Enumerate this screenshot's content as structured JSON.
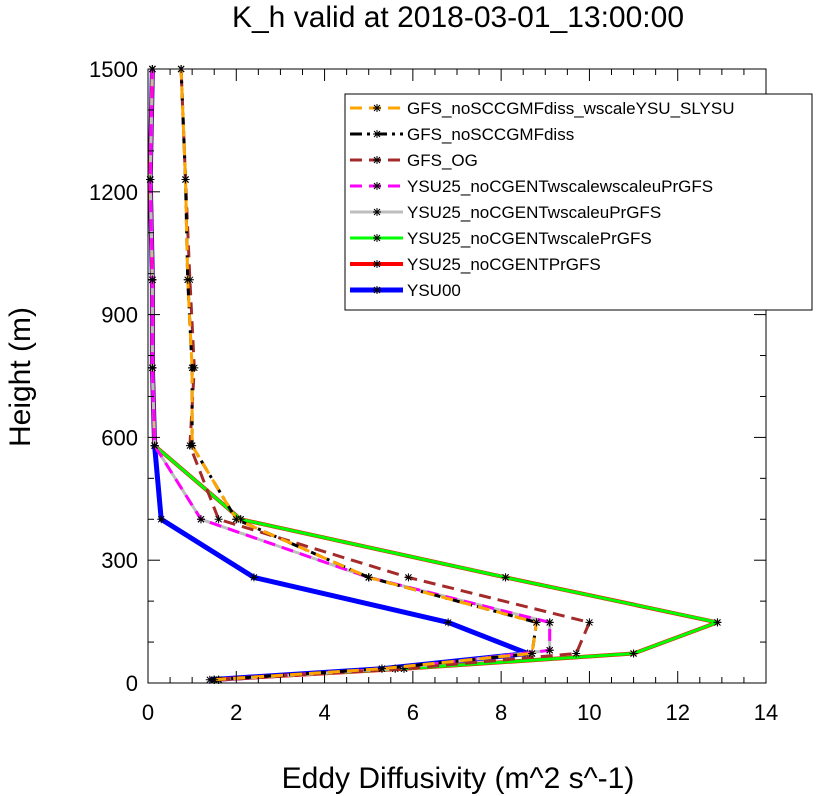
{
  "chart_data": {
    "type": "line",
    "title": "K_h valid at 2018-03-01_13:00:00",
    "xlabel": "Eddy Diffusivity (m^2 s^-1)",
    "ylabel": "Height (m)",
    "xlim": [
      0,
      14
    ],
    "ylim": [
      0,
      1500
    ],
    "xticks": [
      "0",
      "2",
      "4",
      "6",
      "8",
      "10",
      "12",
      "14"
    ],
    "yticks": [
      "0",
      "300",
      "600",
      "900",
      "1200",
      "1500"
    ],
    "grid": false,
    "legend_position": "top-right",
    "series": [
      {
        "name": "GFS_noSCCGMFdiss_wscaleYSU_SLYSU",
        "color": "#ffa500",
        "dash": "dashed",
        "points": [
          [
            1.5,
            8
          ],
          [
            5.3,
            35
          ],
          [
            8.7,
            72
          ],
          [
            8.8,
            148
          ],
          [
            5.0,
            258
          ],
          [
            2.0,
            400
          ],
          [
            1.0,
            580
          ],
          [
            1.0,
            770
          ],
          [
            0.9,
            985
          ],
          [
            0.85,
            1230
          ],
          [
            0.75,
            1500
          ]
        ]
      },
      {
        "name": "GFS_noSCCGMFdiss",
        "color": "#000000",
        "dash": "dashdot",
        "points": [
          [
            1.5,
            8
          ],
          [
            5.3,
            35
          ],
          [
            8.7,
            72
          ],
          [
            8.8,
            148
          ],
          [
            5.0,
            258
          ],
          [
            2.0,
            400
          ],
          [
            1.0,
            580
          ],
          [
            1.0,
            770
          ],
          [
            0.9,
            985
          ],
          [
            0.85,
            1230
          ],
          [
            0.75,
            1500
          ]
        ]
      },
      {
        "name": "GFS_OG",
        "color": "#a52a2a",
        "dash": "dashed",
        "points": [
          [
            1.6,
            8
          ],
          [
            5.8,
            35
          ],
          [
            9.7,
            72
          ],
          [
            10.0,
            148
          ],
          [
            5.9,
            258
          ],
          [
            1.6,
            400
          ],
          [
            0.95,
            580
          ],
          [
            1.05,
            770
          ],
          [
            0.95,
            985
          ],
          [
            0.85,
            1230
          ],
          [
            0.75,
            1500
          ]
        ]
      },
      {
        "name": "YSU25_noCGENTwscalewscaleuPrGFS",
        "color": "#ff00ff",
        "dash": "dashed",
        "points": [
          [
            1.6,
            8
          ],
          [
            5.6,
            35
          ],
          [
            9.1,
            80
          ],
          [
            9.1,
            148
          ],
          [
            5.0,
            258
          ],
          [
            1.2,
            400
          ],
          [
            0.15,
            580
          ],
          [
            0.1,
            770
          ],
          [
            0.1,
            985
          ],
          [
            0.05,
            1230
          ],
          [
            0.1,
            1500
          ]
        ]
      },
      {
        "name": "YSU25_noCGENTwscaleuPrGFS",
        "color": "#bebebe",
        "dash": "solid",
        "points": [
          [
            1.6,
            8
          ],
          [
            5.6,
            35
          ],
          [
            9.1,
            80
          ],
          [
            9.1,
            148
          ],
          [
            5.0,
            258
          ],
          [
            1.2,
            400
          ],
          [
            0.15,
            580
          ],
          [
            0.1,
            770
          ],
          [
            0.1,
            985
          ],
          [
            0.05,
            1230
          ],
          [
            0.1,
            1500
          ]
        ]
      },
      {
        "name": "YSU25_noCGENTwscalePrGFS",
        "color": "#00ff00",
        "dash": "solid",
        "points": [
          [
            1.5,
            8
          ],
          [
            5.8,
            35
          ],
          [
            11.0,
            72
          ],
          [
            12.9,
            148
          ],
          [
            8.1,
            258
          ],
          [
            2.1,
            400
          ],
          [
            0.15,
            580
          ],
          [
            0.1,
            770
          ],
          [
            0.1,
            985
          ],
          [
            0.05,
            1230
          ],
          [
            0.1,
            1500
          ]
        ]
      },
      {
        "name": "YSU25_noCGENTPrGFS",
        "color": "#ff0000",
        "dash": "solid",
        "points": [
          [
            1.5,
            8
          ],
          [
            5.8,
            35
          ],
          [
            11.0,
            72
          ],
          [
            12.9,
            148
          ],
          [
            8.1,
            258
          ],
          [
            2.1,
            400
          ],
          [
            0.15,
            580
          ],
          [
            0.1,
            770
          ],
          [
            0.1,
            985
          ],
          [
            0.05,
            1230
          ],
          [
            0.1,
            1500
          ]
        ]
      },
      {
        "name": "YSU00",
        "color": "#0000ff",
        "dash": "solid",
        "points": [
          [
            1.4,
            8
          ],
          [
            5.3,
            35
          ],
          [
            8.6,
            72
          ],
          [
            6.8,
            148
          ],
          [
            2.4,
            258
          ],
          [
            0.3,
            400
          ],
          [
            0.15,
            580
          ],
          [
            0.1,
            770
          ],
          [
            0.1,
            985
          ],
          [
            0.05,
            1230
          ],
          [
            0.1,
            1500
          ]
        ]
      }
    ]
  }
}
